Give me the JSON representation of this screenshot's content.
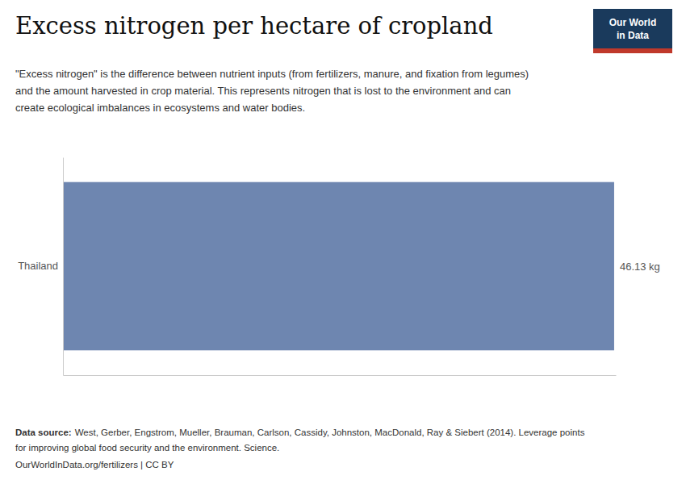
{
  "chart_data": {
    "type": "bar",
    "orientation": "horizontal",
    "title": "Excess nitrogen per hectare of cropland",
    "subtitle": [
      "\"Excess nitrogen\" is the difference between nutrient inputs (from fertilizers, manure, and fixation from legumes)",
      "and the amount harvested in crop material. This represents nitrogen that is lost to the environment and can",
      "create ecological imbalances in ecosystems and water bodies."
    ],
    "annotations": [
      "Data source:",
      "West, Gerber, Engstrom, Mueller, Brauman, Carlson, Cassidy, Johnston, MacDonald, Ray & Siebert (2014). Leverage points",
      "for improving global food security and the environment. Science.",
      "OurWorldInData.org/fertilizers | CC BY",
      "Our World",
      "in Data"
    ],
    "categories": [
      "Thailand"
    ],
    "values": [
      46.13
    ],
    "value_labels": [
      "46.13 kg"
    ],
    "data_labels": true,
    "color": "#6e86b0",
    "xlim": [
      0,
      46.26839
    ],
    "tick_labels": "y"
  }
}
